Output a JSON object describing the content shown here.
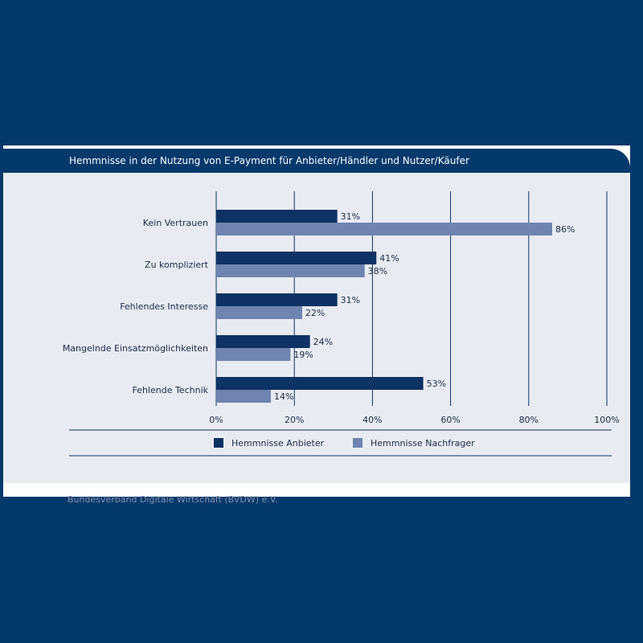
{
  "chart_data": {
    "type": "bar",
    "orientation": "horizontal",
    "title": "Hemmnisse in der Nutzung von E-Payment für Anbieter/Händler und Nutzer/Käufer",
    "categories": [
      "Kein Vertrauen",
      "Zu kompliziert",
      "Fehlendes Interesse",
      "Mangelnde Einsatzmöglichkeiten",
      "Fehlende Technik"
    ],
    "series": [
      {
        "name": "Hemmnisse Anbieter",
        "values": [
          31,
          41,
          31,
          24,
          53
        ],
        "labels": [
          "31%",
          "41%",
          "31%",
          "24%",
          "53%"
        ],
        "color": "#0d3264"
      },
      {
        "name": "Hemmnisse Nachfrager",
        "values": [
          86,
          38,
          22,
          19,
          14
        ],
        "labels": [
          "86%",
          "38%",
          "22%",
          "19%",
          "14%"
        ],
        "color": "#6f84b0"
      }
    ],
    "xlim": [
      0,
      100
    ],
    "xticks": [
      0,
      20,
      40,
      60,
      80,
      100
    ],
    "xtick_labels": [
      "0%",
      "20%",
      "40%",
      "60%",
      "80%",
      "100%"
    ],
    "grid": true,
    "legend": "bottom-center"
  },
  "source": "Bundesverband Digitale Wirtschaft (BVDW) e.V."
}
